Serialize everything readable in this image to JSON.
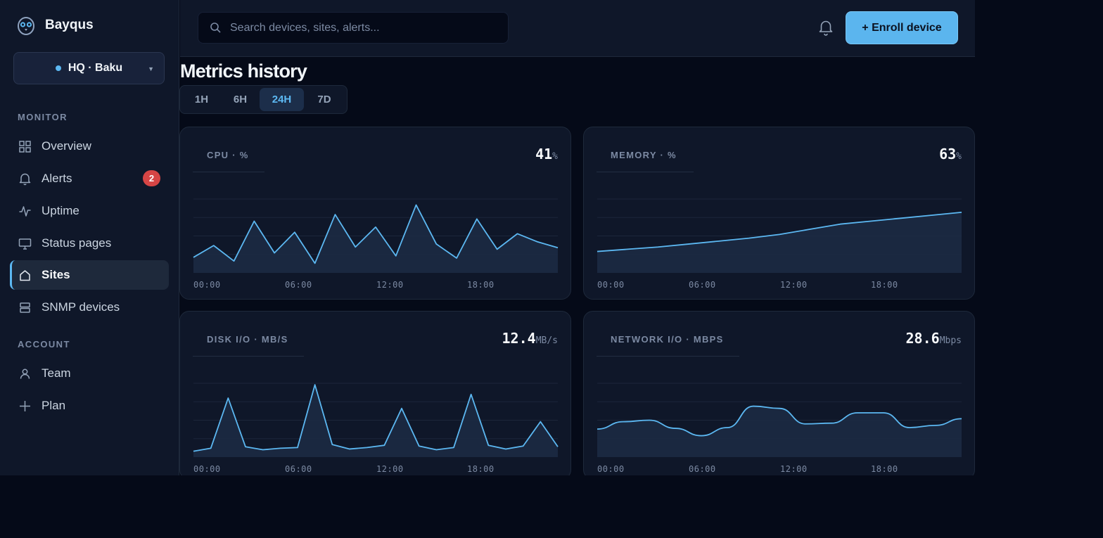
{
  "brand": {
    "name": "Bayqus"
  },
  "site": {
    "label": "HQ · Baku"
  },
  "sidebar": {
    "monitor_label": "MONITOR",
    "account_label": "ACCOUNT",
    "items": [
      {
        "label": "Overview",
        "icon": "grid-icon"
      },
      {
        "label": "Alerts",
        "icon": "bell-icon",
        "badge": "2"
      },
      {
        "label": "Uptime",
        "icon": "pulse-icon"
      },
      {
        "label": "Status pages",
        "icon": "monitor-icon"
      },
      {
        "label": "Sites",
        "icon": "home-icon",
        "active": true
      },
      {
        "label": "SNMP devices",
        "icon": "server-icon"
      },
      {
        "label": "Team",
        "icon": "user-icon"
      },
      {
        "label": "Plan",
        "icon": "plus-icon"
      }
    ]
  },
  "topbar": {
    "search_placeholder": "Search devices, sites, alerts...",
    "enroll_label": "+ Enroll device"
  },
  "page": {
    "title": "Metrics history",
    "ranges": [
      "1H",
      "6H",
      "24H",
      "7D"
    ],
    "active_range": "24H"
  },
  "colors": {
    "accent": "#5cb8f2",
    "badge": "#d64545",
    "background": "#050a18",
    "panel": "#0f1729"
  },
  "chart_data": [
    {
      "type": "area",
      "title": "CPU · %",
      "current": "41",
      "unit": "%",
      "x_ticks": [
        "00:00",
        "06:00",
        "12:00",
        "18:00"
      ],
      "ylim": [
        0,
        100
      ],
      "values": [
        21,
        37,
        16,
        70,
        27,
        55,
        13,
        79,
        35,
        62,
        23,
        92,
        39,
        20,
        73,
        32,
        53,
        42,
        34
      ]
    },
    {
      "type": "area",
      "title": "MEMORY · %",
      "current": "63",
      "unit": "%",
      "x_ticks": [
        "00:00",
        "06:00",
        "12:00",
        "18:00"
      ],
      "ylim": [
        0,
        100
      ],
      "values": [
        29,
        32,
        35,
        39,
        43,
        47,
        52,
        59,
        66,
        70,
        74,
        78,
        82
      ]
    },
    {
      "type": "area",
      "title": "DISK I/O · MB/S",
      "current": "12.4",
      "unit": "MB/s",
      "x_ticks": [
        "00:00",
        "06:00",
        "12:00",
        "18:00"
      ],
      "ylim": [
        0,
        100
      ],
      "values": [
        8,
        12,
        80,
        14,
        10,
        12,
        13,
        98,
        17,
        11,
        13,
        16,
        66,
        15,
        10,
        13,
        85,
        16,
        11,
        15,
        48,
        14
      ]
    },
    {
      "type": "area",
      "title": "NETWORK I/O · MBPS",
      "current": "28.6",
      "unit": "Mbps",
      "x_ticks": [
        "00:00",
        "06:00",
        "12:00",
        "18:00"
      ],
      "ylim": [
        0,
        100
      ],
      "values": [
        38,
        48,
        50,
        39,
        29,
        40,
        69,
        66,
        45,
        46,
        60,
        60,
        40,
        43,
        52
      ]
    }
  ]
}
